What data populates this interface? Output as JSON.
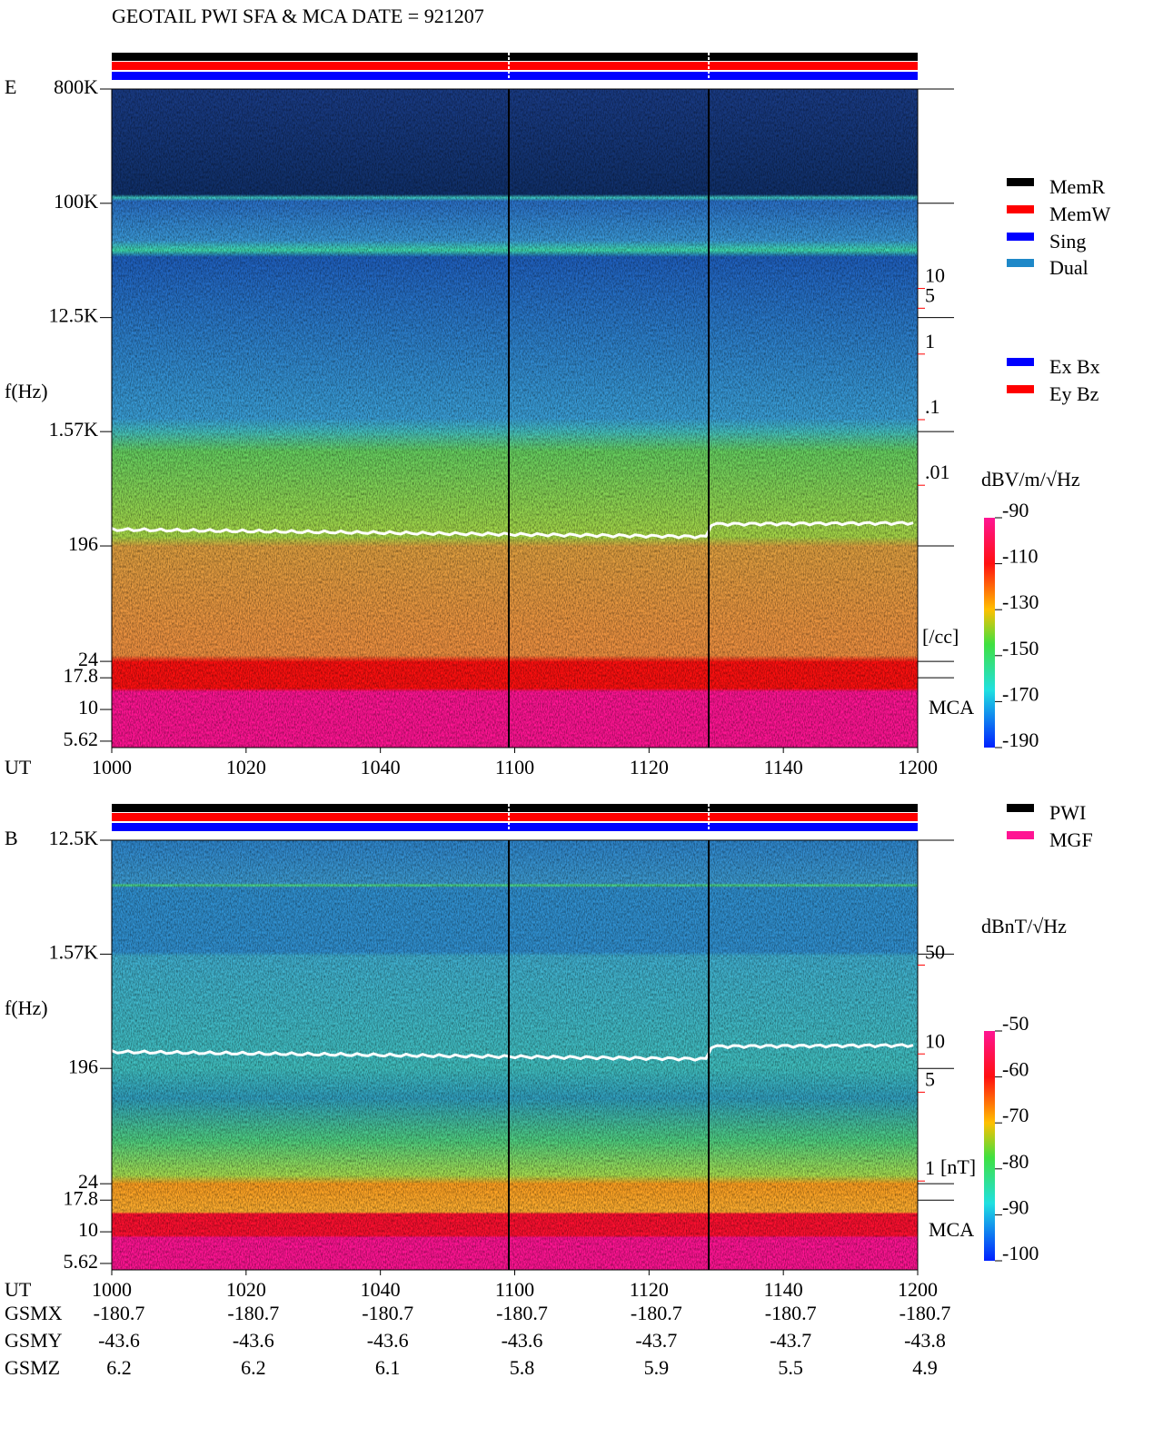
{
  "title": "GEOTAIL  PWI SFA & MCA   DATE = 921207",
  "chart_data": [
    {
      "type": "spectrogram",
      "panel_label": "E",
      "ylabel": "f(Hz)",
      "xlabel": "UT",
      "band_label": "MCA",
      "log_y": true,
      "ylim": [
        5,
        800000
      ],
      "yticks": [
        {
          "value": 800000,
          "label": "800K"
        },
        {
          "value": 100000,
          "label": "100K"
        },
        {
          "value": 12500,
          "label": "12.5K"
        },
        {
          "value": 1570,
          "label": "1.57K"
        },
        196,
        24,
        17.8,
        10,
        5.62
      ],
      "xlim": [
        600,
        720
      ],
      "xticks": [
        {
          "value": 600,
          "label": "1000"
        },
        {
          "value": 620,
          "label": "1020"
        },
        {
          "value": 640,
          "label": "1040"
        },
        {
          "value": 660,
          "label": "1100"
        },
        {
          "value": 680,
          "label": "1120"
        },
        {
          "value": 700,
          "label": "1140"
        },
        {
          "value": 720,
          "label": "1200"
        }
      ],
      "y2lim": [
        1e-06,
        11000
      ],
      "y2label": "[/cc]",
      "y2color": "#ff0000",
      "y2ticks": [
        10,
        5,
        1,
        {
          "value": 0.1,
          "label": ".1"
        },
        {
          "value": 0.01,
          "label": ".01"
        }
      ],
      "colorbar_label": "dBV/m/√Hz",
      "clim": [
        -190,
        -90
      ],
      "cticks": [
        -90,
        -110,
        -130,
        -150,
        -170,
        -190
      ],
      "legends": [
        [
          {
            "name": "MemR",
            "color": "#000000"
          },
          {
            "name": "MemW",
            "color": "#ff0000"
          },
          {
            "name": "Sing",
            "color": "#0000ff"
          },
          {
            "name": "Dual",
            "color": "#1e88c8"
          }
        ],
        [
          {
            "name": "Ex Bx",
            "color": "#0000ff"
          },
          {
            "name": "Ey Bz",
            "color": "#ff0000"
          }
        ]
      ]
    },
    {
      "type": "spectrogram",
      "panel_label": "B",
      "ylabel": "f(Hz)",
      "xlabel": "UT",
      "band_label": "MCA",
      "log_y": true,
      "ylim": [
        5,
        12500
      ],
      "yticks": [
        {
          "value": 12500,
          "label": "12.5K"
        },
        {
          "value": 1570,
          "label": "1.57K"
        },
        196,
        24,
        17.8,
        10,
        5.62
      ],
      "xlim": [
        600,
        720
      ],
      "xticks": [
        {
          "value": 600,
          "label": "1000"
        },
        {
          "value": 620,
          "label": "1020"
        },
        {
          "value": 640,
          "label": "1040"
        },
        {
          "value": 660,
          "label": "1100"
        },
        {
          "value": 680,
          "label": "1120"
        },
        {
          "value": 700,
          "label": "1140"
        },
        {
          "value": 720,
          "label": "1200"
        }
      ],
      "y2lim": [
        0.2,
        480
      ],
      "y2label": "[nT]",
      "y2color": "#ff0000",
      "y2ticks": [
        50,
        10,
        5,
        1
      ],
      "colorbar_label": "dBnT/√Hz",
      "clim": [
        -100,
        -50
      ],
      "cticks": [
        -50,
        -60,
        -70,
        -80,
        -90,
        -100
      ],
      "legends": [
        [
          {
            "name": "PWI",
            "color": "#000000"
          },
          {
            "name": "MGF",
            "color": "#ff1493"
          }
        ]
      ]
    }
  ],
  "orbit": {
    "rows": [
      {
        "name": "GSMX",
        "values": [
          "-180.7",
          "-180.7",
          "-180.7",
          "-180.7",
          "-180.7",
          "-180.7",
          "-180.7"
        ]
      },
      {
        "name": "GSMY",
        "values": [
          "-43.6",
          "-43.6",
          "-43.6",
          "-43.6",
          "-43.7",
          "-43.7",
          "-43.8"
        ]
      },
      {
        "name": "GSMZ",
        "values": [
          "6.2",
          "6.2",
          "6.1",
          "5.8",
          "5.9",
          "5.5",
          "4.9"
        ]
      }
    ]
  }
}
